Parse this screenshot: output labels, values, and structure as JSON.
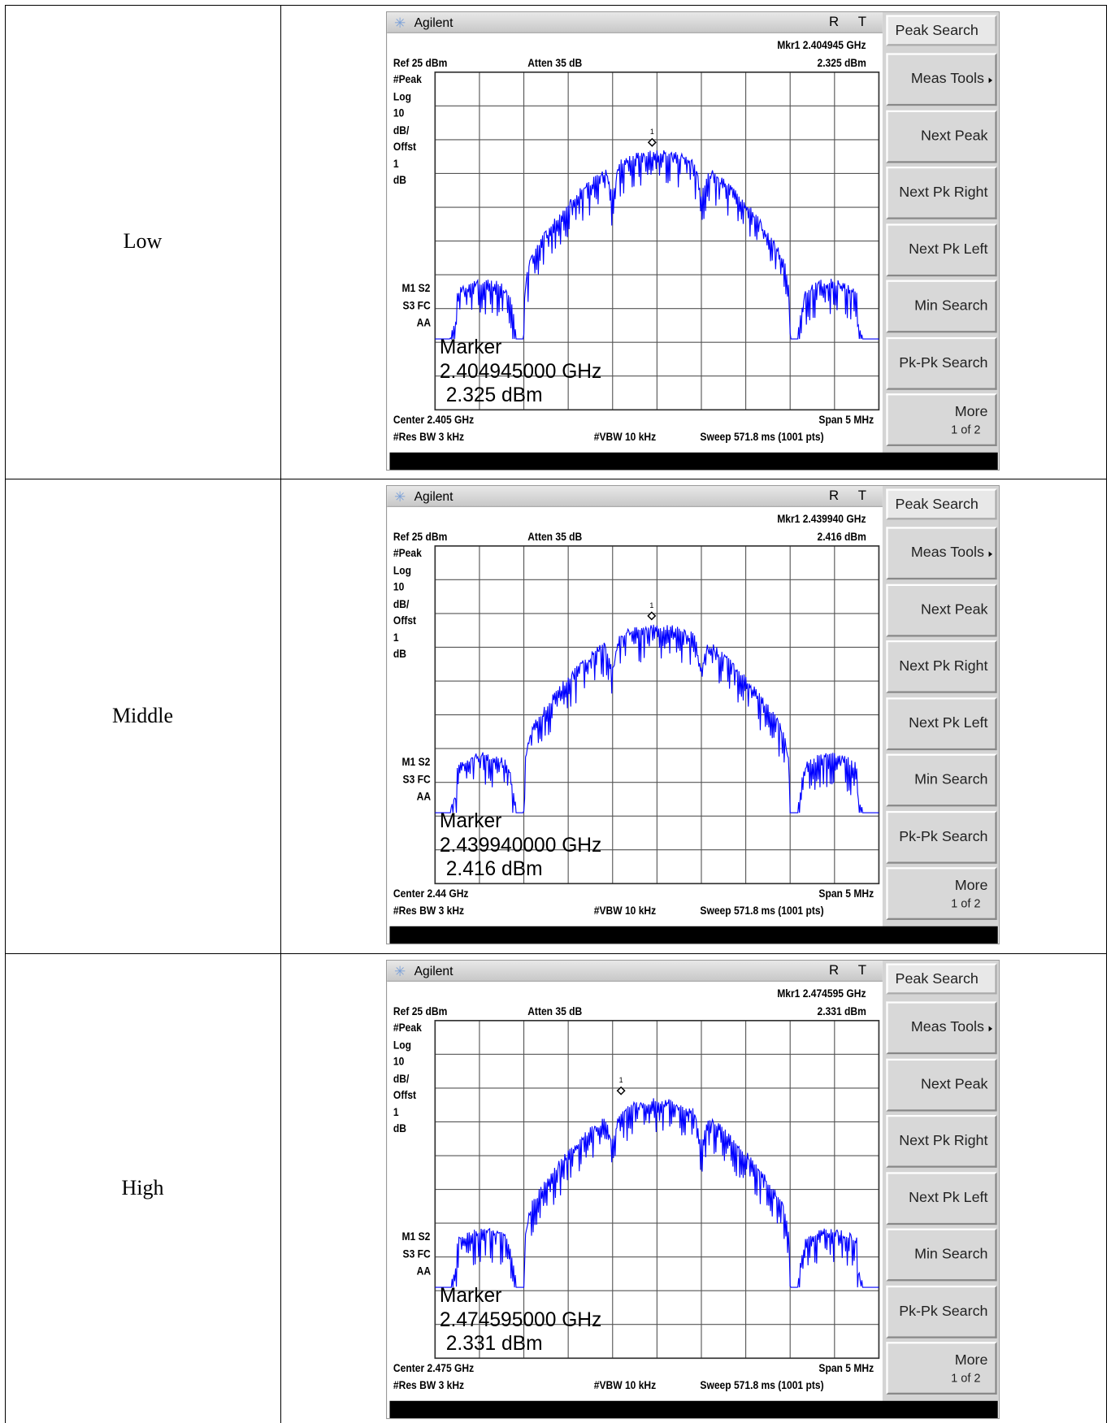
{
  "rows": [
    {
      "label": "Low",
      "screen": {
        "brand": "Agilent",
        "status_r": "R",
        "status_t": "T",
        "marker_readout": "Mkr1 2.404945 GHz",
        "ref_level": "Ref 25 dBm",
        "attenuation": "Atten 35 dB",
        "marker_amplitude": "2.325 dBm",
        "side_labels": [
          "#Peak",
          "Log",
          "10",
          "dB/",
          "Offst",
          "1",
          "dB"
        ],
        "status_labels": [
          "M1 S2",
          "S3 FC",
          "AA"
        ],
        "marker_number": "1",
        "marker_box": [
          "Marker",
          "2.404945000 GHz",
          "2.325 dBm"
        ],
        "center": "Center 2.405 GHz",
        "span": "Span 5 MHz",
        "res_bw": "#Res BW 3 kHz",
        "vbw": "#VBW 10 kHz",
        "sweep": "Sweep 571.8 ms (1001 pts)",
        "softkeys": [
          "Peak Search",
          "Meas Tools",
          "Next Peak",
          "Next Pk Right",
          "Next Pk Left",
          "Min Search",
          "Pk-Pk Search",
          "More"
        ],
        "softkey_page": "1 of 2"
      }
    },
    {
      "label": "Middle",
      "screen": {
        "brand": "Agilent",
        "status_r": "R",
        "status_t": "T",
        "marker_readout": "Mkr1 2.439940 GHz",
        "ref_level": "Ref 25 dBm",
        "attenuation": "Atten 35 dB",
        "marker_amplitude": "2.416 dBm",
        "side_labels": [
          "#Peak",
          "Log",
          "10",
          "dB/",
          "Offst",
          "1",
          "dB"
        ],
        "status_labels": [
          "M1 S2",
          "S3 FC",
          "AA"
        ],
        "marker_number": "1",
        "marker_box": [
          "Marker",
          "2.439940000 GHz",
          "2.416 dBm"
        ],
        "center": "Center 2.44 GHz",
        "span": "Span 5 MHz",
        "res_bw": "#Res BW 3 kHz",
        "vbw": "#VBW 10 kHz",
        "sweep": "Sweep 571.8 ms (1001 pts)",
        "softkeys": [
          "Peak Search",
          "Meas Tools",
          "Next Peak",
          "Next Pk Right",
          "Next Pk Left",
          "Min Search",
          "Pk-Pk Search",
          "More"
        ],
        "softkey_page": "1 of 2"
      }
    },
    {
      "label": "High",
      "screen": {
        "brand": "Agilent",
        "status_r": "R",
        "status_t": "T",
        "marker_readout": "Mkr1 2.474595 GHz",
        "ref_level": "Ref 25 dBm",
        "attenuation": "Atten 35 dB",
        "marker_amplitude": "2.331 dBm",
        "side_labels": [
          "#Peak",
          "Log",
          "10",
          "dB/",
          "Offst",
          "1",
          "dB"
        ],
        "status_labels": [
          "M1 S2",
          "S3 FC",
          "AA"
        ],
        "marker_number": "1",
        "marker_box": [
          "Marker",
          "2.474595000 GHz",
          "2.331 dBm"
        ],
        "center": "Center 2.475 GHz",
        "span": "Span 5 MHz",
        "res_bw": "#Res BW 3 kHz",
        "vbw": "#VBW 10 kHz",
        "sweep": "Sweep 571.8 ms (1001 pts)",
        "softkeys": [
          "Peak Search",
          "Meas Tools",
          "Next Peak",
          "Next Pk Right",
          "Next Pk Left",
          "Min Search",
          "Pk-Pk Search",
          "More"
        ],
        "softkey_page": "1 of 2"
      }
    }
  ]
}
